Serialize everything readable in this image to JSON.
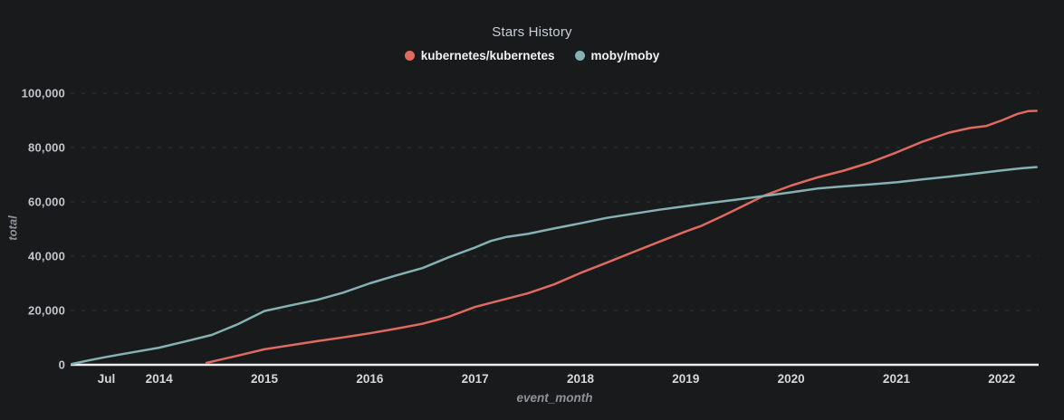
{
  "chart_data": {
    "type": "line",
    "title": "Stars History",
    "xlabel": "event_month",
    "ylabel": "total",
    "legend_position": "top-center",
    "grid": "horizontal-dashed",
    "background_color": "#191a1c",
    "axis_line_color": "#eceef0",
    "xlim": [
      2013.16,
      2022.35
    ],
    "ylim": [
      0,
      100000
    ],
    "x_ticks": [
      {
        "label": "Jul",
        "x": 2013.5
      },
      {
        "label": "2014",
        "x": 2014
      },
      {
        "label": "2015",
        "x": 2015
      },
      {
        "label": "2016",
        "x": 2016
      },
      {
        "label": "2017",
        "x": 2017
      },
      {
        "label": "2018",
        "x": 2018
      },
      {
        "label": "2019",
        "x": 2019
      },
      {
        "label": "2020",
        "x": 2020
      },
      {
        "label": "2021",
        "x": 2021
      },
      {
        "label": "2022",
        "x": 2022
      }
    ],
    "y_ticks": [
      {
        "label": "0",
        "value": 0
      },
      {
        "label": "20,000",
        "value": 20000
      },
      {
        "label": "40,000",
        "value": 40000
      },
      {
        "label": "60,000",
        "value": 60000
      },
      {
        "label": "80,000",
        "value": 80000
      },
      {
        "label": "100,000",
        "value": 100000
      }
    ],
    "series": [
      {
        "name": "kubernetes/kubernetes",
        "color": "#df6a5f",
        "points": [
          [
            2014.45,
            700
          ],
          [
            2014.55,
            1600
          ],
          [
            2014.75,
            3400
          ],
          [
            2015.0,
            5700
          ],
          [
            2015.25,
            7200
          ],
          [
            2015.5,
            8700
          ],
          [
            2015.75,
            10100
          ],
          [
            2016.0,
            11600
          ],
          [
            2016.25,
            13300
          ],
          [
            2016.5,
            15100
          ],
          [
            2016.75,
            17700
          ],
          [
            2017.0,
            21300
          ],
          [
            2017.25,
            23800
          ],
          [
            2017.5,
            26300
          ],
          [
            2017.75,
            29600
          ],
          [
            2018.0,
            33800
          ],
          [
            2018.25,
            37600
          ],
          [
            2018.5,
            41500
          ],
          [
            2018.75,
            45300
          ],
          [
            2019.0,
            49100
          ],
          [
            2019.15,
            51200
          ],
          [
            2019.35,
            54800
          ],
          [
            2019.55,
            58600
          ],
          [
            2019.75,
            62400
          ],
          [
            2020.0,
            66000
          ],
          [
            2020.25,
            69000
          ],
          [
            2020.5,
            71500
          ],
          [
            2020.75,
            74500
          ],
          [
            2021.0,
            78200
          ],
          [
            2021.25,
            82200
          ],
          [
            2021.5,
            85500
          ],
          [
            2021.7,
            87200
          ],
          [
            2021.85,
            87900
          ],
          [
            2022.0,
            90000
          ],
          [
            2022.15,
            92400
          ],
          [
            2022.25,
            93400
          ],
          [
            2022.33,
            93500
          ]
        ]
      },
      {
        "name": "moby/moby",
        "color": "#85b1b2",
        "points": [
          [
            2013.17,
            300
          ],
          [
            2013.33,
            1600
          ],
          [
            2013.5,
            2900
          ],
          [
            2013.75,
            4600
          ],
          [
            2014.0,
            6300
          ],
          [
            2014.25,
            8600
          ],
          [
            2014.5,
            11000
          ],
          [
            2014.75,
            15000
          ],
          [
            2015.0,
            19800
          ],
          [
            2015.25,
            21900
          ],
          [
            2015.5,
            23900
          ],
          [
            2015.75,
            26600
          ],
          [
            2016.0,
            30000
          ],
          [
            2016.25,
            32900
          ],
          [
            2016.5,
            35600
          ],
          [
            2016.75,
            39600
          ],
          [
            2017.0,
            43200
          ],
          [
            2017.15,
            45600
          ],
          [
            2017.3,
            47100
          ],
          [
            2017.5,
            48200
          ],
          [
            2017.75,
            50200
          ],
          [
            2018.0,
            52100
          ],
          [
            2018.25,
            54100
          ],
          [
            2018.5,
            55600
          ],
          [
            2018.75,
            57100
          ],
          [
            2019.0,
            58400
          ],
          [
            2019.25,
            59700
          ],
          [
            2019.5,
            60900
          ],
          [
            2019.75,
            62200
          ],
          [
            2020.0,
            63500
          ],
          [
            2020.25,
            64900
          ],
          [
            2020.5,
            65700
          ],
          [
            2020.75,
            66400
          ],
          [
            2021.0,
            67200
          ],
          [
            2021.25,
            68300
          ],
          [
            2021.5,
            69300
          ],
          [
            2021.75,
            70400
          ],
          [
            2022.0,
            71600
          ],
          [
            2022.2,
            72400
          ],
          [
            2022.33,
            72800
          ]
        ]
      }
    ]
  }
}
